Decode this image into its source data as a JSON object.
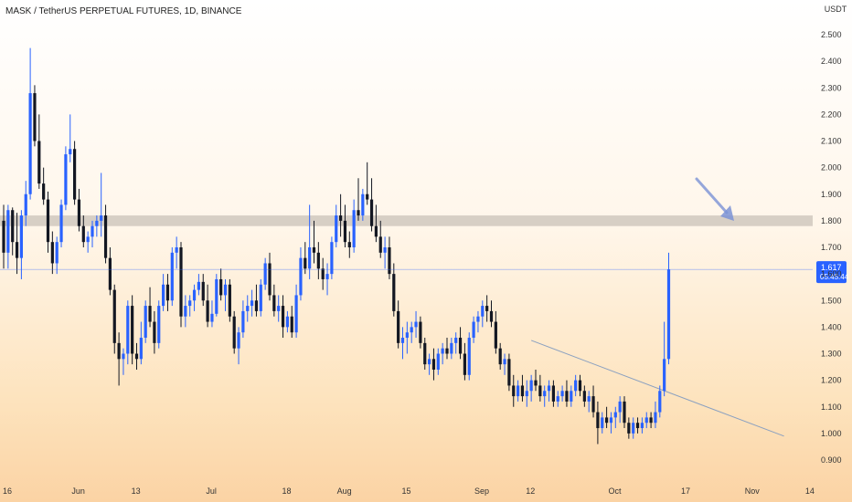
{
  "chart_data": {
    "type": "candlestick",
    "title": "MASK / TetherUS PERPETUAL FUTURES, 1D, BINANCE",
    "currency": "USDT",
    "y_ticks": [
      "2.500",
      "2.400",
      "2.300",
      "2.200",
      "2.100",
      "2.000",
      "1.900",
      "1.800",
      "1.700",
      "1.600",
      "1.500",
      "1.400",
      "1.300",
      "1.200",
      "1.100",
      "1.000",
      "0.900"
    ],
    "ylim": [
      0.86,
      2.6
    ],
    "x_ticks": [
      {
        "label": "16",
        "index": 0
      },
      {
        "label": "Jun",
        "index": 16
      },
      {
        "label": "13",
        "index": 29
      },
      {
        "label": "Jul",
        "index": 46
      },
      {
        "label": "18",
        "index": 63
      },
      {
        "label": "Aug",
        "index": 76
      },
      {
        "label": "15",
        "index": 90
      },
      {
        "label": "Sep",
        "index": 107
      },
      {
        "label": "12",
        "index": 118
      },
      {
        "label": "Oct",
        "index": 137
      },
      {
        "label": "17",
        "index": 153
      },
      {
        "label": "Nov",
        "index": 168
      },
      {
        "label": "14",
        "index": 181
      }
    ],
    "current_price": "1.617",
    "countdown": "05:45:44",
    "resistance_zone": [
      1.78,
      1.82
    ],
    "trendline": {
      "from": {
        "index": 119,
        "value": 1.35
      },
      "to": {
        "index": 176,
        "value": 0.99
      }
    },
    "colors": {
      "up": "#2962ff",
      "down": "#131722",
      "price_line": "#2962ff",
      "zone": "#c9c1b8",
      "trendline": "#8aa0c0",
      "arrow": "#7b93d6"
    },
    "ohlc": [
      [
        1.8,
        1.86,
        1.62,
        1.68
      ],
      [
        1.68,
        1.86,
        1.62,
        1.84
      ],
      [
        1.84,
        1.85,
        1.67,
        1.72
      ],
      [
        1.72,
        1.83,
        1.6,
        1.66
      ],
      [
        1.66,
        1.84,
        1.58,
        1.82
      ],
      [
        1.82,
        1.95,
        1.78,
        1.9
      ],
      [
        1.9,
        2.45,
        1.88,
        2.28
      ],
      [
        2.28,
        2.31,
        2.08,
        2.1
      ],
      [
        2.1,
        2.2,
        1.92,
        1.94
      ],
      [
        1.94,
        2.0,
        1.86,
        1.88
      ],
      [
        1.88,
        1.91,
        1.68,
        1.72
      ],
      [
        1.72,
        1.76,
        1.6,
        1.64
      ],
      [
        1.64,
        1.74,
        1.6,
        1.72
      ],
      [
        1.72,
        1.88,
        1.7,
        1.86
      ],
      [
        1.86,
        2.08,
        1.84,
        2.05
      ],
      [
        2.05,
        2.2,
        2.02,
        2.07
      ],
      [
        2.07,
        2.1,
        1.86,
        1.88
      ],
      [
        1.88,
        1.92,
        1.76,
        1.78
      ],
      [
        1.78,
        1.82,
        1.7,
        1.72
      ],
      [
        1.72,
        1.76,
        1.68,
        1.74
      ],
      [
        1.74,
        1.8,
        1.7,
        1.78
      ],
      [
        1.78,
        1.82,
        1.74,
        1.8
      ],
      [
        1.8,
        1.98,
        1.74,
        1.82
      ],
      [
        1.82,
        1.86,
        1.64,
        1.66
      ],
      [
        1.66,
        1.7,
        1.52,
        1.54
      ],
      [
        1.54,
        1.56,
        1.3,
        1.34
      ],
      [
        1.34,
        1.38,
        1.18,
        1.28
      ],
      [
        1.28,
        1.32,
        1.22,
        1.3
      ],
      [
        1.3,
        1.5,
        1.26,
        1.48
      ],
      [
        1.48,
        1.52,
        1.26,
        1.3
      ],
      [
        1.3,
        1.34,
        1.24,
        1.28
      ],
      [
        1.28,
        1.42,
        1.26,
        1.36
      ],
      [
        1.36,
        1.5,
        1.34,
        1.48
      ],
      [
        1.48,
        1.55,
        1.4,
        1.42
      ],
      [
        1.42,
        1.46,
        1.3,
        1.34
      ],
      [
        1.34,
        1.5,
        1.32,
        1.48
      ],
      [
        1.48,
        1.6,
        1.46,
        1.56
      ],
      [
        1.56,
        1.6,
        1.46,
        1.5
      ],
      [
        1.5,
        1.7,
        1.48,
        1.68
      ],
      [
        1.68,
        1.74,
        1.62,
        1.7
      ],
      [
        1.7,
        1.72,
        1.4,
        1.44
      ],
      [
        1.44,
        1.52,
        1.4,
        1.48
      ],
      [
        1.48,
        1.52,
        1.44,
        1.5
      ],
      [
        1.5,
        1.56,
        1.46,
        1.54
      ],
      [
        1.54,
        1.6,
        1.52,
        1.57
      ],
      [
        1.57,
        1.6,
        1.48,
        1.5
      ],
      [
        1.5,
        1.56,
        1.4,
        1.42
      ],
      [
        1.42,
        1.5,
        1.4,
        1.45
      ],
      [
        1.45,
        1.6,
        1.44,
        1.58
      ],
      [
        1.58,
        1.62,
        1.5,
        1.52
      ],
      [
        1.52,
        1.58,
        1.46,
        1.56
      ],
      [
        1.56,
        1.58,
        1.42,
        1.44
      ],
      [
        1.44,
        1.46,
        1.3,
        1.32
      ],
      [
        1.32,
        1.4,
        1.26,
        1.38
      ],
      [
        1.38,
        1.5,
        1.36,
        1.46
      ],
      [
        1.46,
        1.52,
        1.42,
        1.48
      ],
      [
        1.48,
        1.54,
        1.44,
        1.5
      ],
      [
        1.5,
        1.56,
        1.44,
        1.46
      ],
      [
        1.46,
        1.58,
        1.44,
        1.56
      ],
      [
        1.56,
        1.66,
        1.54,
        1.64
      ],
      [
        1.64,
        1.68,
        1.5,
        1.52
      ],
      [
        1.52,
        1.56,
        1.44,
        1.46
      ],
      [
        1.46,
        1.52,
        1.42,
        1.48
      ],
      [
        1.48,
        1.52,
        1.36,
        1.4
      ],
      [
        1.4,
        1.46,
        1.38,
        1.44
      ],
      [
        1.44,
        1.48,
        1.36,
        1.38
      ],
      [
        1.38,
        1.56,
        1.36,
        1.52
      ],
      [
        1.52,
        1.7,
        1.5,
        1.66
      ],
      [
        1.66,
        1.72,
        1.6,
        1.62
      ],
      [
        1.62,
        1.86,
        1.58,
        1.7
      ],
      [
        1.7,
        1.8,
        1.64,
        1.68
      ],
      [
        1.68,
        1.72,
        1.58,
        1.62
      ],
      [
        1.62,
        1.66,
        1.54,
        1.58
      ],
      [
        1.58,
        1.64,
        1.52,
        1.6
      ],
      [
        1.6,
        1.74,
        1.58,
        1.72
      ],
      [
        1.72,
        1.86,
        1.7,
        1.82
      ],
      [
        1.82,
        1.9,
        1.74,
        1.8
      ],
      [
        1.8,
        1.86,
        1.7,
        1.72
      ],
      [
        1.72,
        1.76,
        1.66,
        1.7
      ],
      [
        1.7,
        1.88,
        1.68,
        1.84
      ],
      [
        1.84,
        1.96,
        1.8,
        1.82
      ],
      [
        1.82,
        1.92,
        1.8,
        1.9
      ],
      [
        1.9,
        2.02,
        1.86,
        1.88
      ],
      [
        1.88,
        1.96,
        1.76,
        1.78
      ],
      [
        1.78,
        1.86,
        1.72,
        1.74
      ],
      [
        1.74,
        1.8,
        1.66,
        1.68
      ],
      [
        1.68,
        1.74,
        1.62,
        1.7
      ],
      [
        1.7,
        1.74,
        1.58,
        1.6
      ],
      [
        1.6,
        1.64,
        1.44,
        1.46
      ],
      [
        1.46,
        1.5,
        1.32,
        1.34
      ],
      [
        1.34,
        1.4,
        1.28,
        1.36
      ],
      [
        1.36,
        1.42,
        1.3,
        1.38
      ],
      [
        1.38,
        1.42,
        1.34,
        1.4
      ],
      [
        1.4,
        1.46,
        1.36,
        1.42
      ],
      [
        1.42,
        1.44,
        1.32,
        1.34
      ],
      [
        1.34,
        1.36,
        1.24,
        1.26
      ],
      [
        1.26,
        1.3,
        1.22,
        1.28
      ],
      [
        1.28,
        1.32,
        1.2,
        1.24
      ],
      [
        1.24,
        1.32,
        1.22,
        1.3
      ],
      [
        1.3,
        1.34,
        1.26,
        1.32
      ],
      [
        1.32,
        1.36,
        1.28,
        1.3
      ],
      [
        1.3,
        1.36,
        1.28,
        1.34
      ],
      [
        1.34,
        1.38,
        1.3,
        1.36
      ],
      [
        1.36,
        1.4,
        1.28,
        1.3
      ],
      [
        1.3,
        1.34,
        1.2,
        1.22
      ],
      [
        1.22,
        1.38,
        1.2,
        1.36
      ],
      [
        1.36,
        1.44,
        1.34,
        1.42
      ],
      [
        1.42,
        1.46,
        1.38,
        1.44
      ],
      [
        1.44,
        1.5,
        1.4,
        1.48
      ],
      [
        1.48,
        1.52,
        1.42,
        1.46
      ],
      [
        1.46,
        1.5,
        1.4,
        1.42
      ],
      [
        1.42,
        1.46,
        1.3,
        1.32
      ],
      [
        1.32,
        1.34,
        1.24,
        1.26
      ],
      [
        1.26,
        1.3,
        1.22,
        1.28
      ],
      [
        1.28,
        1.3,
        1.16,
        1.18
      ],
      [
        1.18,
        1.22,
        1.1,
        1.14
      ],
      [
        1.14,
        1.2,
        1.12,
        1.18
      ],
      [
        1.18,
        1.22,
        1.12,
        1.14
      ],
      [
        1.14,
        1.2,
        1.1,
        1.16
      ],
      [
        1.16,
        1.22,
        1.12,
        1.2
      ],
      [
        1.2,
        1.24,
        1.16,
        1.18
      ],
      [
        1.18,
        1.22,
        1.12,
        1.14
      ],
      [
        1.14,
        1.18,
        1.1,
        1.16
      ],
      [
        1.16,
        1.2,
        1.12,
        1.18
      ],
      [
        1.18,
        1.2,
        1.1,
        1.12
      ],
      [
        1.12,
        1.16,
        1.1,
        1.14
      ],
      [
        1.14,
        1.18,
        1.12,
        1.16
      ],
      [
        1.16,
        1.2,
        1.1,
        1.12
      ],
      [
        1.12,
        1.18,
        1.1,
        1.16
      ],
      [
        1.16,
        1.22,
        1.14,
        1.2
      ],
      [
        1.2,
        1.22,
        1.14,
        1.16
      ],
      [
        1.16,
        1.18,
        1.1,
        1.12
      ],
      [
        1.12,
        1.16,
        1.08,
        1.14
      ],
      [
        1.14,
        1.18,
        1.06,
        1.08
      ],
      [
        1.08,
        1.12,
        0.96,
        1.02
      ],
      [
        1.02,
        1.08,
        1.0,
        1.06
      ],
      [
        1.06,
        1.1,
        1.02,
        1.04
      ],
      [
        1.04,
        1.08,
        1.0,
        1.06
      ],
      [
        1.06,
        1.1,
        1.02,
        1.08
      ],
      [
        1.08,
        1.14,
        1.04,
        1.12
      ],
      [
        1.12,
        1.14,
        1.02,
        1.04
      ],
      [
        1.04,
        1.06,
        0.98,
        1.0
      ],
      [
        1.0,
        1.06,
        0.98,
        1.04
      ],
      [
        1.04,
        1.06,
        1.0,
        1.02
      ],
      [
        1.02,
        1.06,
        1.0,
        1.04
      ],
      [
        1.04,
        1.08,
        1.02,
        1.06
      ],
      [
        1.06,
        1.08,
        1.02,
        1.04
      ],
      [
        1.04,
        1.12,
        1.02,
        1.08
      ],
      [
        1.08,
        1.18,
        1.06,
        1.16
      ],
      [
        1.16,
        1.42,
        1.14,
        1.28
      ],
      [
        1.28,
        1.68,
        1.26,
        1.617
      ]
    ]
  }
}
